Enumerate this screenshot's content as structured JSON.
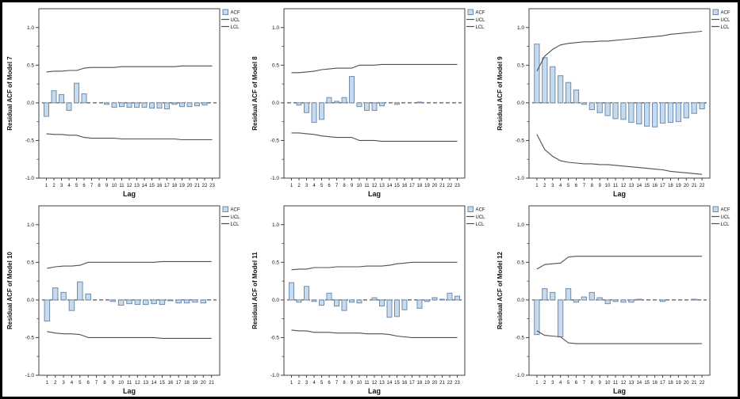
{
  "page": {
    "background": "#ffffff",
    "border_color": "#000000",
    "description": "Grid of six SPSS residual autocorrelation (ACF) plots for Models 7-12"
  },
  "colors": {
    "bar_fill": "#c7dbee",
    "bar_stroke": "#6f8cae",
    "cl_line": "#4f4f4f",
    "zero_line": "#2e2e2e",
    "plot_border": "#404040",
    "text": "#111111"
  },
  "axis": {
    "xlabel": "Lag",
    "ytick_labels": [
      "1.0",
      "0.5",
      "0.0",
      "-0.5",
      "-1.0"
    ],
    "ytick_values": [
      1.0,
      0.5,
      0.0,
      -0.5,
      -1.0
    ],
    "yminor_values": [
      0.75,
      0.25,
      -0.25,
      -0.75
    ],
    "ylim": [
      -1.0,
      1.25
    ],
    "grid": "off",
    "legend_position": "top-right-outside"
  },
  "legend": {
    "items": [
      "ACF",
      "UCL",
      "LCL"
    ]
  },
  "chart_data": [
    {
      "type": "bar",
      "id": "model-7",
      "ylabel": "Residual ACF of Model 7",
      "xlabel": "Lag",
      "ylim": [
        -1.0,
        1.25
      ],
      "legend": [
        "ACF",
        "UCL",
        "LCL"
      ],
      "lags": [
        1,
        2,
        3,
        4,
        5,
        6,
        7,
        8,
        9,
        10,
        11,
        12,
        13,
        14,
        15,
        16,
        17,
        18,
        19,
        20,
        21,
        22,
        23
      ],
      "series": [
        {
          "name": "ACF",
          "type": "bar",
          "values": [
            -0.18,
            0.16,
            0.11,
            -0.1,
            0.26,
            0.12,
            0.0,
            0.0,
            -0.02,
            -0.06,
            -0.05,
            -0.06,
            -0.06,
            -0.06,
            -0.07,
            -0.07,
            -0.08,
            -0.02,
            -0.05,
            -0.05,
            -0.04,
            -0.03,
            0.0
          ]
        },
        {
          "name": "UCL",
          "type": "line",
          "values": [
            0.41,
            0.42,
            0.42,
            0.43,
            0.43,
            0.46,
            0.47,
            0.47,
            0.47,
            0.47,
            0.48,
            0.48,
            0.48,
            0.48,
            0.48,
            0.48,
            0.48,
            0.48,
            0.49,
            0.49,
            0.49,
            0.49,
            0.49
          ]
        },
        {
          "name": "LCL",
          "type": "line",
          "values": [
            -0.41,
            -0.42,
            -0.42,
            -0.43,
            -0.43,
            -0.46,
            -0.47,
            -0.47,
            -0.47,
            -0.47,
            -0.48,
            -0.48,
            -0.48,
            -0.48,
            -0.48,
            -0.48,
            -0.48,
            -0.48,
            -0.49,
            -0.49,
            -0.49,
            -0.49,
            -0.49
          ]
        }
      ]
    },
    {
      "type": "bar",
      "id": "model-8",
      "ylabel": "Residual ACF of Model 8",
      "xlabel": "Lag",
      "ylim": [
        -1.0,
        1.25
      ],
      "legend": [
        "ACF",
        "UCL",
        "LCL"
      ],
      "lags": [
        1,
        2,
        3,
        4,
        5,
        6,
        7,
        8,
        9,
        10,
        11,
        12,
        13,
        14,
        15,
        16,
        17,
        18,
        19,
        20,
        21,
        22,
        23
      ],
      "series": [
        {
          "name": "ACF",
          "type": "bar",
          "values": [
            0.0,
            -0.03,
            -0.13,
            -0.26,
            -0.22,
            0.07,
            0.02,
            0.07,
            0.35,
            -0.05,
            -0.1,
            -0.1,
            -0.04,
            0.0,
            -0.02,
            0.0,
            0.0,
            0.01,
            0.0,
            0.0,
            0.0,
            0.0,
            0.0
          ]
        },
        {
          "name": "UCL",
          "type": "line",
          "values": [
            0.4,
            0.4,
            0.41,
            0.42,
            0.44,
            0.45,
            0.46,
            0.46,
            0.46,
            0.5,
            0.5,
            0.5,
            0.51,
            0.51,
            0.51,
            0.51,
            0.51,
            0.51,
            0.51,
            0.51,
            0.51,
            0.51,
            0.51
          ]
        },
        {
          "name": "LCL",
          "type": "line",
          "values": [
            -0.4,
            -0.4,
            -0.41,
            -0.42,
            -0.44,
            -0.45,
            -0.46,
            -0.46,
            -0.46,
            -0.5,
            -0.5,
            -0.5,
            -0.51,
            -0.51,
            -0.51,
            -0.51,
            -0.51,
            -0.51,
            -0.51,
            -0.51,
            -0.51,
            -0.51,
            -0.51
          ]
        }
      ]
    },
    {
      "type": "bar",
      "id": "model-9",
      "ylabel": "Residual ACF of Model 9",
      "xlabel": "Lag",
      "ylim": [
        -1.0,
        1.25
      ],
      "legend": [
        "ACF",
        "UCL",
        "LCL"
      ],
      "lags": [
        1,
        2,
        3,
        4,
        5,
        6,
        7,
        8,
        9,
        10,
        11,
        12,
        13,
        14,
        15,
        16,
        17,
        18,
        19,
        20,
        21,
        22
      ],
      "series": [
        {
          "name": "ACF",
          "type": "bar",
          "values": [
            0.78,
            0.6,
            0.48,
            0.36,
            0.27,
            0.17,
            -0.02,
            -0.09,
            -0.13,
            -0.17,
            -0.21,
            -0.22,
            -0.26,
            -0.28,
            -0.31,
            -0.32,
            -0.27,
            -0.26,
            -0.25,
            -0.2,
            -0.14,
            -0.08
          ]
        },
        {
          "name": "UCL",
          "type": "line",
          "values": [
            0.42,
            0.62,
            0.71,
            0.77,
            0.79,
            0.8,
            0.81,
            0.81,
            0.82,
            0.82,
            0.83,
            0.84,
            0.85,
            0.86,
            0.87,
            0.88,
            0.89,
            0.91,
            0.92,
            0.93,
            0.94,
            0.95
          ]
        },
        {
          "name": "LCL",
          "type": "line",
          "values": [
            -0.42,
            -0.62,
            -0.71,
            -0.77,
            -0.79,
            -0.8,
            -0.81,
            -0.81,
            -0.82,
            -0.82,
            -0.83,
            -0.84,
            -0.85,
            -0.86,
            -0.87,
            -0.88,
            -0.89,
            -0.91,
            -0.92,
            -0.93,
            -0.94,
            -0.95
          ]
        }
      ]
    },
    {
      "type": "bar",
      "id": "model-10",
      "ylabel": "Residual ACF of Model 10",
      "xlabel": "Lag",
      "ylim": [
        -1.0,
        1.25
      ],
      "legend": [
        "ACF",
        "UCL",
        "LCL"
      ],
      "lags": [
        1,
        2,
        3,
        4,
        5,
        6,
        7,
        8,
        9,
        10,
        11,
        12,
        13,
        14,
        15,
        16,
        17,
        18,
        19,
        20,
        21
      ],
      "series": [
        {
          "name": "ACF",
          "type": "bar",
          "values": [
            -0.28,
            0.16,
            0.1,
            -0.14,
            0.24,
            0.08,
            0.0,
            0.0,
            -0.02,
            -0.07,
            -0.05,
            -0.06,
            -0.06,
            -0.05,
            -0.06,
            -0.01,
            -0.04,
            -0.04,
            -0.03,
            -0.04,
            0.0
          ]
        },
        {
          "name": "UCL",
          "type": "line",
          "values": [
            0.42,
            0.44,
            0.45,
            0.45,
            0.46,
            0.5,
            0.5,
            0.5,
            0.5,
            0.5,
            0.5,
            0.5,
            0.5,
            0.5,
            0.51,
            0.51,
            0.51,
            0.51,
            0.51,
            0.51,
            0.51
          ]
        },
        {
          "name": "LCL",
          "type": "line",
          "values": [
            -0.42,
            -0.44,
            -0.45,
            -0.45,
            -0.46,
            -0.5,
            -0.5,
            -0.5,
            -0.5,
            -0.5,
            -0.5,
            -0.5,
            -0.5,
            -0.5,
            -0.51,
            -0.51,
            -0.51,
            -0.51,
            -0.51,
            -0.51,
            -0.51
          ]
        }
      ]
    },
    {
      "type": "bar",
      "id": "model-11",
      "ylabel": "Residual ACF of Model 11",
      "xlabel": "Lag",
      "ylim": [
        -1.0,
        1.25
      ],
      "legend": [
        "ACF",
        "UCL",
        "LCL"
      ],
      "lags": [
        1,
        2,
        3,
        4,
        5,
        6,
        7,
        8,
        9,
        10,
        11,
        12,
        13,
        14,
        15,
        16,
        17,
        18,
        19,
        20,
        21,
        22,
        23
      ],
      "series": [
        {
          "name": "ACF",
          "type": "bar",
          "values": [
            0.23,
            -0.03,
            0.18,
            -0.02,
            -0.07,
            0.09,
            -0.08,
            -0.14,
            -0.03,
            -0.04,
            0.0,
            0.03,
            -0.08,
            -0.23,
            -0.22,
            -0.13,
            0.0,
            -0.11,
            -0.02,
            0.03,
            0.01,
            0.09,
            0.05
          ]
        },
        {
          "name": "UCL",
          "type": "line",
          "values": [
            0.4,
            0.41,
            0.41,
            0.43,
            0.43,
            0.43,
            0.44,
            0.44,
            0.44,
            0.44,
            0.45,
            0.45,
            0.45,
            0.46,
            0.48,
            0.49,
            0.5,
            0.5,
            0.5,
            0.5,
            0.5,
            0.5,
            0.5
          ]
        },
        {
          "name": "LCL",
          "type": "line",
          "values": [
            -0.4,
            -0.41,
            -0.41,
            -0.43,
            -0.43,
            -0.43,
            -0.44,
            -0.44,
            -0.44,
            -0.44,
            -0.45,
            -0.45,
            -0.45,
            -0.46,
            -0.48,
            -0.49,
            -0.5,
            -0.5,
            -0.5,
            -0.5,
            -0.5,
            -0.5,
            -0.5
          ]
        }
      ]
    },
    {
      "type": "bar",
      "id": "model-12",
      "ylabel": "Residual ACF of Model 12",
      "xlabel": "Lag",
      "ylim": [
        -1.0,
        1.25
      ],
      "legend": [
        "ACF",
        "UCL",
        "LCL"
      ],
      "lags": [
        1,
        2,
        3,
        4,
        5,
        6,
        7,
        8,
        9,
        10,
        11,
        12,
        13,
        14,
        15,
        16,
        17,
        18,
        19,
        20,
        21,
        22
      ],
      "series": [
        {
          "name": "ACF",
          "type": "bar",
          "values": [
            -0.46,
            0.15,
            0.1,
            -0.49,
            0.15,
            -0.03,
            0.04,
            0.1,
            0.03,
            -0.05,
            -0.02,
            -0.03,
            -0.03,
            0.01,
            0.0,
            0.0,
            -0.02,
            0.0,
            0.0,
            0.0,
            0.01,
            0.0
          ]
        },
        {
          "name": "UCL",
          "type": "line",
          "values": [
            0.41,
            0.47,
            0.48,
            0.49,
            0.57,
            0.58,
            0.58,
            0.58,
            0.58,
            0.58,
            0.58,
            0.58,
            0.58,
            0.58,
            0.58,
            0.58,
            0.58,
            0.58,
            0.58,
            0.58,
            0.58,
            0.58
          ]
        },
        {
          "name": "LCL",
          "type": "line",
          "values": [
            -0.41,
            -0.47,
            -0.48,
            -0.49,
            -0.57,
            -0.58,
            -0.58,
            -0.58,
            -0.58,
            -0.58,
            -0.58,
            -0.58,
            -0.58,
            -0.58,
            -0.58,
            -0.58,
            -0.58,
            -0.58,
            -0.58,
            -0.58,
            -0.58,
            -0.58
          ]
        }
      ]
    }
  ]
}
